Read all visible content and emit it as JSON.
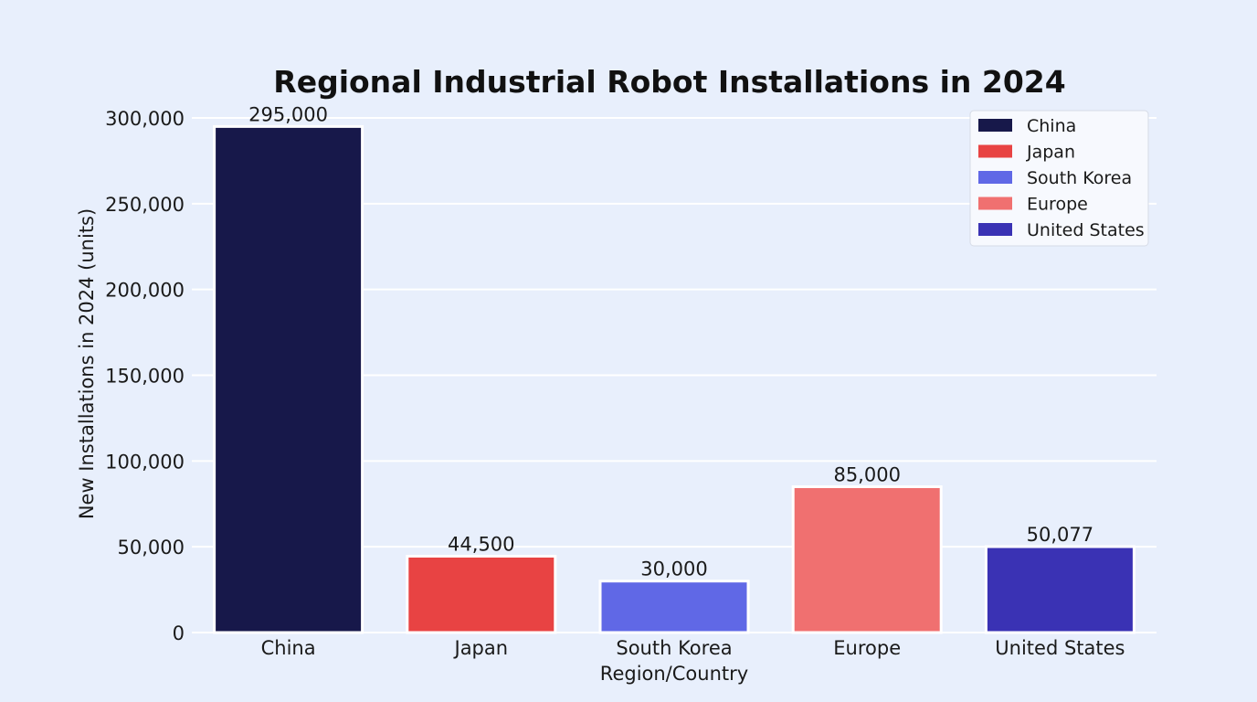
{
  "chart_data": {
    "type": "bar",
    "title": "Regional Industrial Robot Installations in 2024",
    "xlabel": "Region/Country",
    "ylabel": "New Installations in 2024 (units)",
    "categories": [
      "China",
      "Japan",
      "South Korea",
      "Europe",
      "United States"
    ],
    "values": [
      295000,
      44500,
      30000,
      85000,
      50077
    ],
    "value_labels": [
      "295,000",
      "44,500",
      "30,000",
      "85,000",
      "50,077"
    ],
    "colors": [
      "#17184a",
      "#e84343",
      "#6068e6",
      "#f07070",
      "#3a32b4"
    ],
    "ylim": [
      0,
      300000
    ],
    "yticks": [
      0,
      50000,
      100000,
      150000,
      200000,
      250000,
      300000
    ],
    "ytick_labels": [
      "0",
      "50,000",
      "100,000",
      "150,000",
      "200,000",
      "250,000",
      "300,000"
    ],
    "grid": true,
    "legend": {
      "position": "top-right",
      "entries": [
        "China",
        "Japan",
        "South Korea",
        "Europe",
        "United States"
      ]
    }
  }
}
